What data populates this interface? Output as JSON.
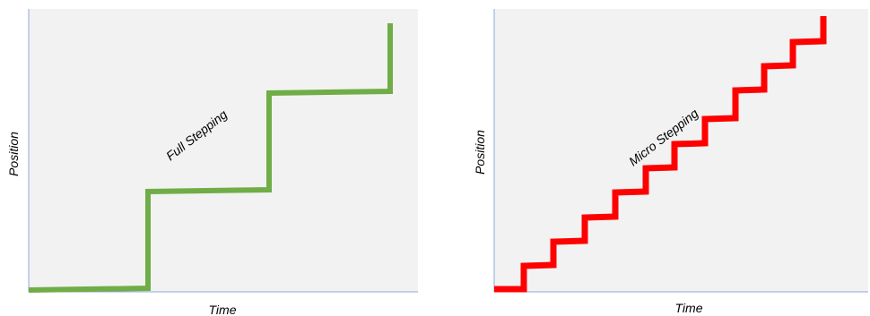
{
  "panels": [
    {
      "id": "full",
      "annotation": "Full Stepping",
      "xlabel": "Time",
      "ylabel": "Position",
      "plot_background": "#f2f2f2",
      "axis_color": "#8faadc",
      "line_color": "#70ad47"
    },
    {
      "id": "micro",
      "annotation": "Micro Stepping",
      "xlabel": "Time",
      "ylabel": "Position",
      "plot_background": "#f2f2f2",
      "axis_color": "#8faadc",
      "line_color": "#ff0000"
    }
  ]
}
